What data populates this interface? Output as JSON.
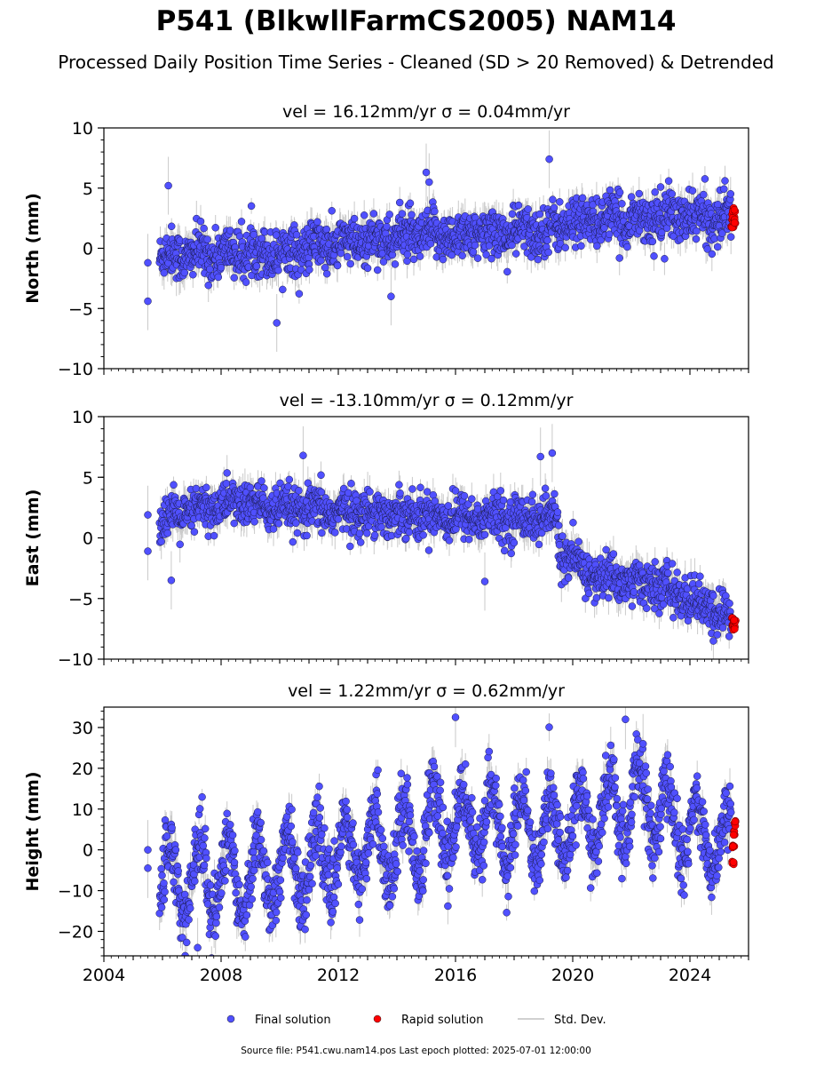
{
  "title": "P541 (BlkwllFarmCS2005) NAM14",
  "subtitle": "Processed Daily Position Time Series - Cleaned (SD > 20 Removed) & Detrended",
  "footer": "Source file: P541.cwu.nam14.pos  Last epoch plotted: 2025-07-01 12:00:00",
  "colors": {
    "final": "#5050ff",
    "rapid": "#ff0000",
    "stddev": "#c0c0c0",
    "axis": "#000000"
  },
  "legend": [
    {
      "label": "Final solution",
      "type": "marker",
      "color": "#5050ff"
    },
    {
      "label": "Rapid solution",
      "type": "marker",
      "color": "#ff0000"
    },
    {
      "label": "Std. Dev.",
      "type": "line",
      "color": "#c0c0c0"
    }
  ],
  "chart_data": [
    {
      "type": "scatter",
      "title": "vel = 16.12mm/yr   σ = 0.04mm/yr",
      "ylabel": "North (mm)",
      "xlim": [
        2004,
        2026
      ],
      "ylim": [
        -10,
        10
      ],
      "yticks": [
        10,
        5,
        0,
        -5,
        -10
      ],
      "ytick_labels": [
        "10",
        "5",
        "0",
        "−5",
        "−10"
      ],
      "trend": [
        [
          2005.4,
          -0.8
        ],
        [
          2006.0,
          -0.6
        ],
        [
          2010.0,
          -0.3
        ],
        [
          2014.0,
          0.9
        ],
        [
          2017.0,
          1.2
        ],
        [
          2019.0,
          1.4
        ],
        [
          2020.0,
          2.2
        ],
        [
          2023.0,
          2.6
        ],
        [
          2025.5,
          2.5
        ]
      ],
      "scatter_sd": 1.0,
      "seasonal_amp": 0.4,
      "outliers": [
        [
          2005.5,
          -4.4
        ],
        [
          2005.5,
          -1.2
        ],
        [
          2006.2,
          5.2
        ],
        [
          2009.9,
          -6.2
        ],
        [
          2015.0,
          6.3
        ],
        [
          2019.2,
          7.4
        ],
        [
          2013.8,
          -4.0
        ],
        [
          2015.1,
          5.5
        ]
      ],
      "rapid": [
        [
          2025.45,
          1.9
        ],
        [
          2025.48,
          2.6
        ],
        [
          2025.5,
          3.2
        ],
        [
          2025.52,
          2.2
        ]
      ]
    },
    {
      "type": "scatter",
      "title": "vel = -13.10mm/yr   σ = 0.12mm/yr",
      "ylabel": "East (mm)",
      "xlim": [
        2004,
        2026
      ],
      "ylim": [
        -10,
        10
      ],
      "yticks": [
        10,
        5,
        0,
        -5,
        -10
      ],
      "ytick_labels": [
        "10",
        "5",
        "0",
        "−5",
        "−10"
      ],
      "trend": [
        [
          2005.4,
          0.5
        ],
        [
          2006.0,
          1.5
        ],
        [
          2008.5,
          3.0
        ],
        [
          2010.0,
          2.3
        ],
        [
          2014.0,
          2.0
        ],
        [
          2017.0,
          1.6
        ],
        [
          2019.45,
          1.6
        ],
        [
          2019.55,
          -1.0
        ],
        [
          2020.5,
          -3.0
        ],
        [
          2023.0,
          -4.0
        ],
        [
          2025.5,
          -6.8
        ]
      ],
      "scatter_sd": 0.9,
      "seasonal_amp": 0.3,
      "outliers": [
        [
          2005.5,
          1.9
        ],
        [
          2005.5,
          -1.1
        ],
        [
          2006.3,
          -3.5
        ],
        [
          2010.8,
          6.8
        ],
        [
          2018.9,
          6.7
        ],
        [
          2019.3,
          7.0
        ],
        [
          2017.0,
          -3.6
        ],
        [
          2024.8,
          -8.5
        ]
      ],
      "rapid": [
        [
          2025.45,
          -6.6
        ],
        [
          2025.48,
          -7.1
        ],
        [
          2025.5,
          -7.4
        ],
        [
          2025.52,
          -6.9
        ]
      ]
    },
    {
      "type": "scatter",
      "title": "vel = 1.22mm/yr   σ = 0.62mm/yr",
      "ylabel": "Height (mm)",
      "xlim": [
        2004,
        2026
      ],
      "ylim": [
        -26,
        35
      ],
      "yticks": [
        30,
        20,
        10,
        0,
        -10,
        -20
      ],
      "ytick_labels": [
        "30",
        "20",
        "10",
        "0",
        "−10",
        "−20"
      ],
      "xticks": [
        2004,
        2008,
        2012,
        2016,
        2020,
        2024
      ],
      "xtick_labels": [
        "2004",
        "2008",
        "2012",
        "2016",
        "2020",
        "2024"
      ],
      "trend": [
        [
          2005.4,
          -5.0
        ],
        [
          2006.0,
          -8.0
        ],
        [
          2010.0,
          -5.0
        ],
        [
          2014.0,
          2.0
        ],
        [
          2016.0,
          7.0
        ],
        [
          2019.0,
          4.0
        ],
        [
          2022.5,
          12.0
        ],
        [
          2023.5,
          6.0
        ],
        [
          2025.5,
          1.0
        ]
      ],
      "scatter_sd": 4.0,
      "seasonal_amp": 9.0,
      "outliers": [
        [
          2016.0,
          32.5
        ],
        [
          2021.8,
          32.0
        ],
        [
          2007.2,
          -24.0
        ],
        [
          2005.5,
          -4.5
        ],
        [
          2005.5,
          0.0
        ],
        [
          2022.4,
          26.0
        ]
      ],
      "rapid": [
        [
          2025.45,
          -3.0
        ],
        [
          2025.48,
          0.5
        ],
        [
          2025.5,
          4.0
        ],
        [
          2025.52,
          6.5
        ]
      ]
    }
  ]
}
